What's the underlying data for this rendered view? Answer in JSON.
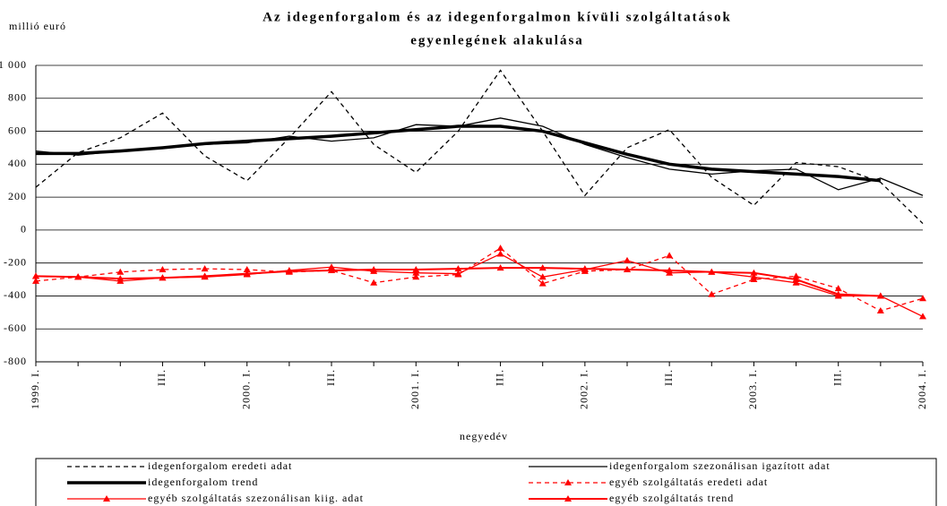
{
  "chart_data": {
    "type": "line",
    "title": [
      "Az idegenforgalom és az idegenforgalmon kívüli szolgáltatások",
      "egyenlegének alakulása"
    ],
    "y_label": "millió euró",
    "x_label": "negyedév",
    "categories": [
      "1999. I.",
      null,
      null,
      "III.",
      null,
      "2000. I.",
      null,
      "III.",
      null,
      "2001. I.",
      null,
      "III.",
      null,
      "2002. I.",
      null,
      "III.",
      null,
      "2003. I.",
      null,
      "III.",
      null,
      "2004. I."
    ],
    "ylim": [
      -800,
      1000
    ],
    "yticks": [
      -800,
      -600,
      -400,
      -200,
      0,
      200,
      400,
      600,
      800,
      {
        "value": 1000,
        "label": "1 000"
      }
    ],
    "grid": true,
    "series": [
      {
        "name": "idegenforgalom eredeti adat",
        "color": "#000000",
        "dash": true,
        "width": 1.3,
        "values": [
          260,
          470,
          560,
          710,
          450,
          300,
          560,
          840,
          520,
          350,
          600,
          970,
          600,
          210,
          500,
          610,
          320,
          150,
          410,
          385,
          290,
          40
        ]
      },
      {
        "name": "idegenforgalom szezonálisan igazított adat",
        "color": "#000000",
        "dash": false,
        "width": 1.3,
        "values": [
          480,
          455,
          480,
          500,
          520,
          530,
          570,
          540,
          560,
          640,
          630,
          680,
          630,
          520,
          440,
          370,
          340,
          360,
          370,
          245,
          315,
          210
        ]
      },
      {
        "name": "idegenforgalom trend",
        "color": "#000000",
        "dash": false,
        "width": 3.5,
        "values": [
          465,
          465,
          480,
          500,
          525,
          540,
          555,
          570,
          590,
          610,
          630,
          630,
          600,
          530,
          460,
          400,
          370,
          355,
          340,
          325,
          300,
          null
        ]
      },
      {
        "name": "egyéb szolgáltatás eredeti adat",
        "color": "#ff0000",
        "dash": true,
        "width": 1.3,
        "marker": "triangle",
        "values": [
          -310,
          -285,
          -255,
          -240,
          -235,
          -240,
          -255,
          -245,
          -320,
          -285,
          -270,
          -110,
          -325,
          -250,
          -240,
          -155,
          -390,
          -300,
          -280,
          -355,
          -490,
          -415
        ]
      },
      {
        "name": "egyéb szolgáltatás szezonálisan kiig. adat",
        "color": "#ff0000",
        "dash": false,
        "width": 1.3,
        "marker": "triangle",
        "values": [
          -280,
          -285,
          -310,
          -290,
          -285,
          -270,
          -245,
          -225,
          -250,
          -260,
          -265,
          -145,
          -285,
          -240,
          -185,
          -260,
          -255,
          -285,
          -320,
          -400,
          -400,
          -525
        ]
      },
      {
        "name": "egyéb szolgáltatás trend",
        "color": "#ff0000",
        "dash": false,
        "width": 2,
        "marker": "triangle",
        "values": [
          -280,
          -285,
          -295,
          -290,
          -280,
          -265,
          -250,
          -245,
          -240,
          -240,
          -235,
          -230,
          -230,
          -235,
          -240,
          -245,
          -255,
          -260,
          -300,
          -390,
          -400,
          null
        ]
      }
    ]
  }
}
